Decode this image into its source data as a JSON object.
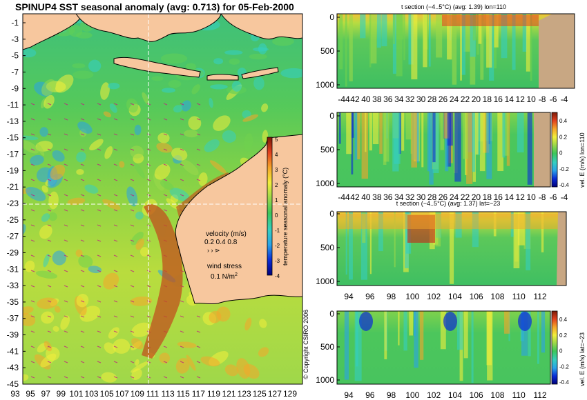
{
  "title": "SPINUP4 SST seasonal anomaly (avg: 0.713) for 05-Feb-2000",
  "copyright": "© Copyright CSIRO 2006",
  "colors": {
    "land": "#f7c79e",
    "land_section": "#c8a783",
    "ocean_base": "#4cc462",
    "colormap": [
      "#00007a",
      "#0a2bd6",
      "#2aa3e8",
      "#36cfc0",
      "#3cc65a",
      "#9bd84a",
      "#f2ef3c",
      "#f5a52a",
      "#e2401e",
      "#7a1a08"
    ]
  },
  "chart_data": [
    {
      "id": "map",
      "type": "heatmap",
      "title": "SPINUP4 SST seasonal anomaly (avg: 0.713) for 05-Feb-2000",
      "x_ticks": [
        "93",
        "95",
        "97",
        "99",
        "101",
        "103",
        "105",
        "107",
        "109",
        "111",
        "113",
        "115",
        "117",
        "119",
        "121",
        "123",
        "125",
        "127",
        "129"
      ],
      "y_ticks": [
        "-1",
        "-3",
        "-5",
        "-7",
        "-9",
        "-11",
        "-13",
        "-15",
        "-17",
        "-19",
        "-21",
        "-23",
        "-25",
        "-27",
        "-29",
        "-31",
        "-33",
        "-35",
        "-37",
        "-39",
        "-41",
        "-43",
        "-45"
      ],
      "xlim": [
        93,
        130
      ],
      "ylim": [
        -45,
        0
      ],
      "colorbar": {
        "label": "temperature seasonal anomaly (°C)",
        "ticks": [
          "5",
          "4",
          "3",
          "2",
          "1",
          "0",
          "-1",
          "-2",
          "-3",
          "-4"
        ],
        "range": [
          -4,
          5
        ]
      },
      "legend": {
        "velocity_label": "velocity (m/s)",
        "velocity_values": "0.2 0.4 0.8",
        "wind_label": "wind stress",
        "wind_value": "0.1 N/m",
        "wind_exp": "2"
      },
      "section_lines": {
        "lon": 110,
        "lat": -23
      }
    },
    {
      "id": "panel1",
      "type": "heatmap",
      "title": "t section (−4..5°C) (avg: 1.39) lon=110",
      "x_ticks": [
        "-44",
        "42",
        "40",
        "38",
        "36",
        "34",
        "32",
        "30",
        "28",
        "26",
        "24",
        "22",
        "20",
        "18",
        "16",
        "14",
        "12",
        "10",
        "-8",
        "-6",
        "-4"
      ],
      "y_ticks": [
        "0",
        "500",
        "1000"
      ],
      "ylim": [
        1050,
        0
      ]
    },
    {
      "id": "panel2",
      "type": "heatmap",
      "title": "",
      "x_ticks": [
        "-44",
        "42",
        "40",
        "38",
        "36",
        "34",
        "32",
        "30",
        "28",
        "26",
        "24",
        "22",
        "20",
        "18",
        "16",
        "14",
        "12",
        "10",
        "-8",
        "-6",
        "-4"
      ],
      "y_ticks": [
        "0",
        "500",
        "1000"
      ],
      "ylim": [
        1050,
        0
      ],
      "colorbar": {
        "label": "vel. E (m/s) lon=110",
        "ticks": [
          "0.4",
          "0.2",
          "0",
          "-0.2",
          "-0.4"
        ]
      }
    },
    {
      "id": "panel3",
      "type": "heatmap",
      "title": "t section (−4..5°C) (avg: 1.37) lat=−23",
      "x_ticks": [
        "94",
        "96",
        "98",
        "100",
        "102",
        "104",
        "106",
        "108",
        "110",
        "112"
      ],
      "y_ticks": [
        "0",
        "500",
        "1000"
      ],
      "ylim": [
        1050,
        0
      ]
    },
    {
      "id": "panel4",
      "type": "heatmap",
      "title": "",
      "x_ticks": [
        "94",
        "96",
        "98",
        "100",
        "102",
        "104",
        "106",
        "108",
        "110",
        "112"
      ],
      "y_ticks": [
        "0",
        "500",
        "1000"
      ],
      "ylim": [
        1050,
        0
      ],
      "colorbar": {
        "label": "vel. E (m/s) lat=−23",
        "ticks": [
          "0.4",
          "0.2",
          "0",
          "-0.2",
          "-0.4"
        ]
      }
    }
  ]
}
